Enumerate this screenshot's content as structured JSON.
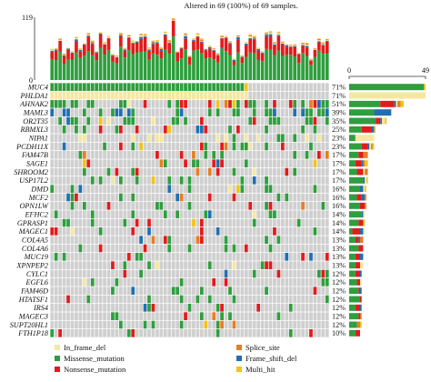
{
  "chart_data": {
    "type": "heatmap",
    "title": "Altered in 69 (100%) of 69 samples.",
    "top_axis": {
      "max_label": "119",
      "min_label": "0",
      "ylim": [
        0,
        119
      ]
    },
    "right_axis": {
      "min_label": "0",
      "max_label": "49",
      "xlim": [
        0,
        49
      ]
    },
    "n_samples": 69,
    "genes": [
      {
        "name": "MUC4",
        "pct": "71%"
      },
      {
        "name": "PHLDA1",
        "pct": "71%"
      },
      {
        "name": "AHNAK2",
        "pct": "51%"
      },
      {
        "name": "MAML3",
        "pct": "39%"
      },
      {
        "name": "OR2T35",
        "pct": "35%"
      },
      {
        "name": "RBMXL3",
        "pct": "25%"
      },
      {
        "name": "NIPA1",
        "pct": "23%"
      },
      {
        "name": "PCDH11X",
        "pct": "23%"
      },
      {
        "name": "FAM47B",
        "pct": "17%"
      },
      {
        "name": "SAGE1",
        "pct": "17%"
      },
      {
        "name": "SHROOM2",
        "pct": "17%"
      },
      {
        "name": "USP17L2",
        "pct": "17%"
      },
      {
        "name": "DMD",
        "pct": "16%"
      },
      {
        "name": "MCF2",
        "pct": "16%"
      },
      {
        "name": "OPN1LW",
        "pct": "16%"
      },
      {
        "name": "EFHC2",
        "pct": "14%"
      },
      {
        "name": "GPRASP1",
        "pct": "14%"
      },
      {
        "name": "MAGEC1",
        "pct": "14%"
      },
      {
        "name": "COL4A5",
        "pct": "13%"
      },
      {
        "name": "COL4A6",
        "pct": "13%"
      },
      {
        "name": "MUC19",
        "pct": "13%"
      },
      {
        "name": "XPNPEP2",
        "pct": "13%"
      },
      {
        "name": "CYLC1",
        "pct": "12%"
      },
      {
        "name": "EGFL6",
        "pct": "12%"
      },
      {
        "name": "FAM46D",
        "pct": "12%"
      },
      {
        "name": "HTATSF1",
        "pct": "12%"
      },
      {
        "name": "IRS4",
        "pct": "12%"
      },
      {
        "name": "MAGEC3",
        "pct": "12%"
      },
      {
        "name": "SUPT20HL1",
        "pct": "12%"
      },
      {
        "name": "FTH1P18",
        "pct": "10%"
      }
    ],
    "legend": [
      {
        "label": "In_frame_del",
        "color": "#f5e79e"
      },
      {
        "label": "Splice_site",
        "color": "#e67e22"
      },
      {
        "label": "Missense_mutation",
        "color": "#2e9e3e"
      },
      {
        "label": "Frame_shift_del",
        "color": "#1f6fb2"
      },
      {
        "label": "Nonsense_mutation",
        "color": "#e31a1c"
      },
      {
        "label": "Multi_hit",
        "color": "#f0c419"
      }
    ],
    "colors": {
      "none": "#cfcfcf",
      "In_frame_del": "#f5e79e",
      "Splice_site": "#e67e22",
      "Missense_mutation": "#2e9e3e",
      "Frame_shift_del": "#1f6fb2",
      "Nonsense_mutation": "#e31a1c",
      "Multi_hit": "#f0c419"
    }
  }
}
